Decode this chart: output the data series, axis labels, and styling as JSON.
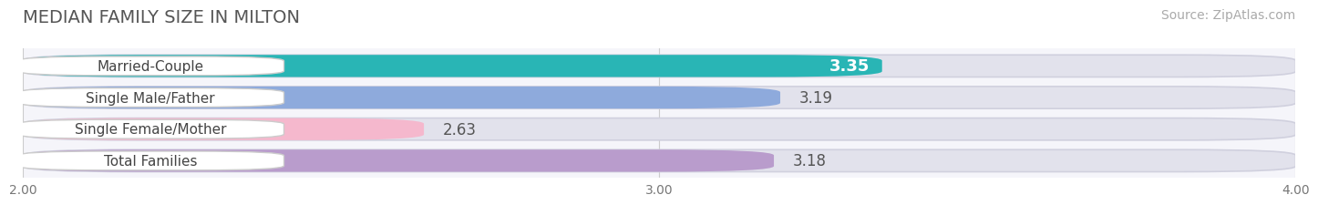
{
  "title": "MEDIAN FAMILY SIZE IN MILTON",
  "source": "Source: ZipAtlas.com",
  "categories": [
    "Married-Couple",
    "Single Male/Father",
    "Single Female/Mother",
    "Total Families"
  ],
  "values": [
    3.35,
    3.19,
    2.63,
    3.18
  ],
  "bar_colors": [
    "#29b5b5",
    "#8eaadc",
    "#f5b8cd",
    "#b99ccc"
  ],
  "xmin": 2.0,
  "xmax": 4.0,
  "xticks": [
    2.0,
    3.0,
    4.0
  ],
  "xtick_labels": [
    "2.00",
    "3.00",
    "4.00"
  ],
  "background_color": "#f5f5fa",
  "bar_bg_color": "#e2e2ec",
  "title_fontsize": 14,
  "source_fontsize": 10,
  "bar_label_fontsize": 12,
  "category_fontsize": 11,
  "value_bold": [
    true,
    false,
    false,
    false
  ]
}
